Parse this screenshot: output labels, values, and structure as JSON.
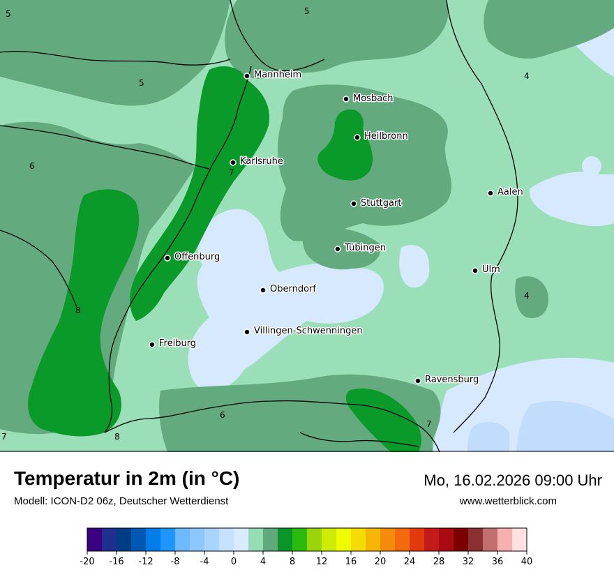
{
  "map": {
    "colors": {
      "light_blue": "#d6e9ff",
      "pale_blue": "#c2dcfb",
      "mint": "#9bdfb8",
      "sea_green": "#63ab7e",
      "green": "#0a9a2a",
      "border": "#000000"
    },
    "cities": [
      {
        "name": "Mannheim"
      },
      {
        "name": "Mosbach"
      },
      {
        "name": "Heilbronn"
      },
      {
        "name": "Karlsruhe"
      },
      {
        "name": "Stuttgart"
      },
      {
        "name": "Aalen"
      },
      {
        "name": "Tübingen"
      },
      {
        "name": "Offenburg"
      },
      {
        "name": "Ulm"
      },
      {
        "name": "Oberndorf"
      },
      {
        "name": "Villingen-Schwenningen"
      },
      {
        "name": "Freiburg"
      },
      {
        "name": "Ravensburg"
      }
    ],
    "isolines": [
      "5",
      "5",
      "4",
      "5",
      "6",
      "7",
      "8",
      "4",
      "6",
      "7",
      "7",
      "8"
    ]
  },
  "footer": {
    "title": "Temperatur in 2m (in °C)",
    "model": "Modell: ICON-D2 06z, Deutscher Wetterdienst",
    "datetime": "Mo, 16.02.2026 09:00 Uhr",
    "website": "www.wetterblick.com"
  },
  "legend": {
    "ticks": [
      "-20",
      "-16",
      "-12",
      "-8",
      "-4",
      "0",
      "4",
      "8",
      "12",
      "16",
      "20",
      "24",
      "28",
      "32",
      "36",
      "40"
    ],
    "colors": [
      "#3b0082",
      "#1f2f8e",
      "#003d87",
      "#0058b4",
      "#007de8",
      "#1e96ff",
      "#6eb9ff",
      "#8cc8ff",
      "#a8d5ff",
      "#c6e1ff",
      "#d9ebff",
      "#96dcb5",
      "#5fa97c",
      "#0b9429",
      "#2bbb0c",
      "#9ad40a",
      "#cdeb03",
      "#eefb01",
      "#f5dc02",
      "#f6b605",
      "#f58b0a",
      "#f26a0c",
      "#e23a0c",
      "#c51a1a",
      "#a80b12",
      "#7d0000",
      "#8b3030",
      "#c46f6f",
      "#f7b0b0",
      "#ffe1e1"
    ]
  }
}
